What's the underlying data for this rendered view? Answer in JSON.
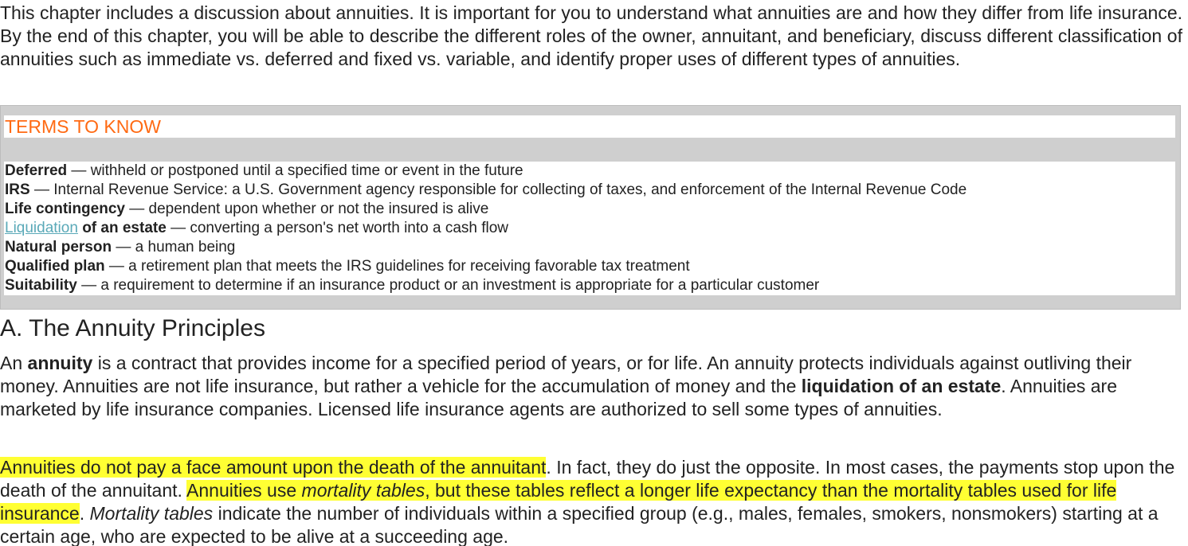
{
  "intro": "This chapter includes a discussion about annuities. It is important for you to understand what annuities are and how they differ from life insurance. By the end of this chapter, you will be able to describe the different roles of the owner, annuitant, and beneficiary, discuss different classification of annuities such as immediate vs. deferred and fixed vs. variable, and identify proper uses of different types of annuities.",
  "terms_box": {
    "title": "TERMS TO KNOW",
    "title_color": "#ff6a13",
    "link_color": "#5aa9b8",
    "items": [
      {
        "term": "Deferred",
        "def": " — withheld or postponed until a specified time or event in the future"
      },
      {
        "term": "IRS",
        "def": " — Internal Revenue Service: a U.S. Government agency responsible for collecting of taxes, and enforcement of the Internal Revenue Code"
      },
      {
        "term": "Life contingency",
        "def": " — dependent upon whether or not the insured is alive"
      },
      {
        "term_link": "Liquidation",
        "term_rest": " of an estate",
        "def": " — converting a person's net worth into a cash flow"
      },
      {
        "term": "Natural person",
        "def": " — a human being"
      },
      {
        "term": "Qualified plan",
        "def": " — a retirement plan that meets the IRS guidelines for receiving favorable tax treatment"
      },
      {
        "term": "Suitability",
        "def": " — a requirement to determine if an insurance product or an investment is appropriate for a particular customer"
      }
    ]
  },
  "section": {
    "heading": "A. The Annuity Principles",
    "para1": {
      "t1": "An ",
      "b1": "annuity",
      "t2": " is a contract that provides income for a specified period of years, or for life. An annuity protects individuals against outliving their money. Annuities are not life insurance, but rather a vehicle for the accumulation of money and the ",
      "b2": "liquidation of an estate",
      "t3": ". Annuities are marketed by life insurance companies. Licensed life insurance agents are authorized to sell some types of annuities."
    },
    "para2": {
      "h1": "Annuities do not pay a face amount upon the death of the annuitant",
      "t1": ". In fact, they do just the opposite. In most cases, the payments stop upon the death of the annuitant. ",
      "h2a": "Annuities use ",
      "h2i": "mortality tables",
      "h2b": ", but these tables reflect a longer life expectancy than the mortality tables used for life insurance",
      "t2": ". ",
      "i1": "Mortality tables",
      "t3": " indicate the number of individuals within a specified group (e.g., males, females, smokers, nonsmokers) starting at a certain age, who are expected to be alive at a succeeding age."
    },
    "highlight_color": "#ffff33"
  }
}
